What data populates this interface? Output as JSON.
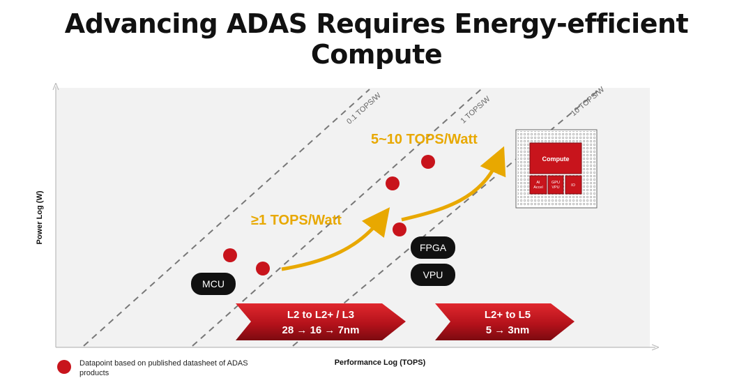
{
  "title": "Advancing ADAS Requires Energy-efficient Compute",
  "chart_data": {
    "type": "scatter",
    "xlabel": "Performance Log (TOPS)",
    "ylabel": "Power Log (W)",
    "log_scale": true,
    "grid": false,
    "efficiency_lines": [
      {
        "label": "0.1 TOPS/W"
      },
      {
        "label": "1 TOPS/W"
      },
      {
        "label": "10 TOPS/W"
      }
    ],
    "points_color": "#c8141c",
    "points_note": "Datapoint based on published datasheet of ADAS products",
    "device_labels": [
      "MCU",
      "FPGA",
      "VPU"
    ],
    "annotations": [
      {
        "text": "≥1 TOPS/Watt",
        "color": "#e8a800"
      },
      {
        "text": "5~10 TOPS/Watt",
        "color": "#e8a800"
      }
    ],
    "banners": [
      {
        "line1": "L2 to L2+ / L3",
        "line2": "28 → 16 → 7nm"
      },
      {
        "line1": "L2+ to L5",
        "line2": "5 → 3nm"
      }
    ],
    "chip": {
      "main": "Compute",
      "blocks": [
        "AI Accel",
        "GPU VPU",
        "IO"
      ]
    }
  }
}
